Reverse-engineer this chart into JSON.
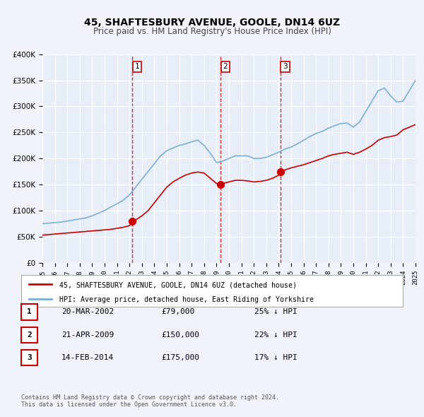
{
  "title": "45, SHAFTESBURY AVENUE, GOOLE, DN14 6UZ",
  "subtitle": "Price paid vs. HM Land Registry's House Price Index (HPI)",
  "bg_color": "#f0f4fa",
  "plot_bg_color": "#e8eef8",
  "grid_color": "#ffffff",
  "red_line_color": "#cc0000",
  "blue_line_color": "#7ab0d4",
  "ylim": [
    0,
    400000
  ],
  "yticks": [
    0,
    50000,
    100000,
    150000,
    200000,
    250000,
    300000,
    350000,
    400000
  ],
  "ytick_labels": [
    "£0",
    "£50K",
    "£100K",
    "£150K",
    "£200K",
    "£250K",
    "£300K",
    "£350K",
    "£400K"
  ],
  "x_start_year": 1995,
  "x_end_year": 2025,
  "vline_years": [
    2002.22,
    2009.31,
    2014.12
  ],
  "vline_labels": [
    "1",
    "2",
    "3"
  ],
  "sale_points": [
    {
      "year": 2002.22,
      "value": 79000,
      "label": "1"
    },
    {
      "year": 2009.31,
      "value": 150000,
      "label": "2"
    },
    {
      "year": 2014.12,
      "value": 175000,
      "label": "3"
    }
  ],
  "legend_red_label": "45, SHAFTESBURY AVENUE, GOOLE, DN14 6UZ (detached house)",
  "legend_blue_label": "HPI: Average price, detached house, East Riding of Yorkshire",
  "table_rows": [
    {
      "num": "1",
      "date": "20-MAR-2002",
      "price": "£79,000",
      "hpi": "25% ↓ HPI"
    },
    {
      "num": "2",
      "date": "21-APR-2009",
      "price": "£150,000",
      "hpi": "22% ↓ HPI"
    },
    {
      "num": "3",
      "date": "14-FEB-2014",
      "price": "£175,000",
      "hpi": "17% ↓ HPI"
    }
  ],
  "footer": "Contains HM Land Registry data © Crown copyright and database right 2024.\nThis data is licensed under the Open Government Licence v3.0.",
  "hpi_data": {
    "years": [
      1995.0,
      1995.5,
      1996.0,
      1996.5,
      1997.0,
      1997.5,
      1998.0,
      1998.5,
      1999.0,
      1999.5,
      2000.0,
      2000.5,
      2001.0,
      2001.5,
      2002.0,
      2002.5,
      2003.0,
      2003.5,
      2004.0,
      2004.5,
      2005.0,
      2005.5,
      2006.0,
      2006.5,
      2007.0,
      2007.5,
      2008.0,
      2008.5,
      2009.0,
      2009.5,
      2010.0,
      2010.5,
      2011.0,
      2011.5,
      2012.0,
      2012.5,
      2013.0,
      2013.5,
      2014.0,
      2014.5,
      2015.0,
      2015.5,
      2016.0,
      2016.5,
      2017.0,
      2017.5,
      2018.0,
      2018.5,
      2019.0,
      2019.5,
      2020.0,
      2020.5,
      2021.0,
      2021.5,
      2022.0,
      2022.5,
      2023.0,
      2023.5,
      2024.0,
      2024.5,
      2025.0
    ],
    "values": [
      75000,
      76000,
      77000,
      78000,
      80000,
      82000,
      84000,
      86000,
      90000,
      95000,
      100000,
      107000,
      113000,
      120000,
      130000,
      145000,
      160000,
      175000,
      190000,
      205000,
      215000,
      220000,
      225000,
      228000,
      232000,
      235000,
      225000,
      210000,
      192000,
      195000,
      200000,
      205000,
      205000,
      205000,
      200000,
      200000,
      202000,
      207000,
      212000,
      218000,
      222000,
      228000,
      235000,
      242000,
      248000,
      252000,
      258000,
      263000,
      267000,
      268000,
      260000,
      270000,
      290000,
      310000,
      330000,
      335000,
      320000,
      308000,
      310000,
      330000,
      350000
    ]
  },
  "red_data": {
    "years": [
      1995.0,
      1995.5,
      1996.0,
      1996.5,
      1997.0,
      1997.5,
      1998.0,
      1998.5,
      1999.0,
      1999.5,
      2000.0,
      2000.5,
      2001.0,
      2001.5,
      2002.0,
      2002.22,
      2002.5,
      2003.0,
      2003.5,
      2004.0,
      2004.5,
      2005.0,
      2005.5,
      2006.0,
      2006.5,
      2007.0,
      2007.5,
      2008.0,
      2008.5,
      2009.0,
      2009.31,
      2009.5,
      2010.0,
      2010.5,
      2011.0,
      2011.5,
      2012.0,
      2012.5,
      2013.0,
      2013.5,
      2014.0,
      2014.12,
      2014.5,
      2015.0,
      2015.5,
      2016.0,
      2016.5,
      2017.0,
      2017.5,
      2018.0,
      2018.5,
      2019.0,
      2019.5,
      2020.0,
      2020.5,
      2021.0,
      2021.5,
      2022.0,
      2022.5,
      2023.0,
      2023.5,
      2024.0,
      2024.5,
      2025.0
    ],
    "values": [
      53000,
      54000,
      55000,
      56000,
      57000,
      58000,
      59000,
      60000,
      61000,
      62000,
      63000,
      64000,
      66000,
      68000,
      71000,
      79000,
      82000,
      90000,
      100000,
      115000,
      130000,
      145000,
      155000,
      162000,
      168000,
      172000,
      174000,
      172000,
      162000,
      152000,
      150000,
      152000,
      155000,
      158000,
      158000,
      157000,
      155000,
      156000,
      158000,
      162000,
      168000,
      175000,
      178000,
      182000,
      185000,
      188000,
      192000,
      196000,
      200000,
      205000,
      208000,
      210000,
      212000,
      208000,
      212000,
      218000,
      225000,
      235000,
      240000,
      242000,
      245000,
      255000,
      260000,
      265000
    ]
  }
}
